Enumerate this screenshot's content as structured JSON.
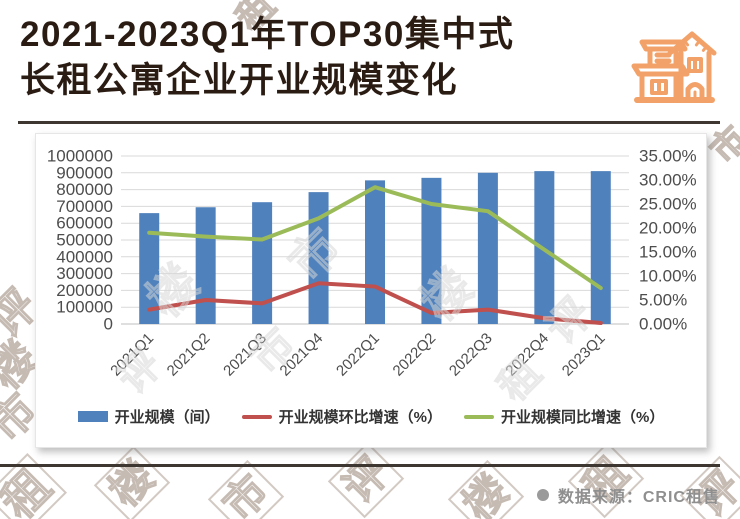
{
  "title": {
    "line1": "2021-2023Q1年TOP30集中式",
    "line2": "长租公寓企业开业规模变化"
  },
  "footer": {
    "bullet": "●",
    "source": "数据来源：CRIC租售"
  },
  "watermark": {
    "texts": [
      "评",
      "楼",
      "市",
      "租"
    ]
  },
  "colors": {
    "bar_blue": "#4F81BD",
    "line_red": "#C0504D",
    "line_green": "#9BBB59",
    "accent_orange": "#F2A269",
    "title_text": "#2A1C13",
    "rule": "#3E3731",
    "grid": "#D9D9D9",
    "axis_text": "#4D4D4D",
    "footer_text": "#8F8F8F"
  },
  "chart_data": {
    "type": "combo-bar-line",
    "categories": [
      "2021Q1",
      "2021Q2",
      "2021Q3",
      "2021Q4",
      "2022Q1",
      "2022Q2",
      "2022Q3",
      "2022Q4",
      "2023Q1"
    ],
    "series": [
      {
        "name": "开业规模（间）",
        "type": "bar",
        "axis": "left",
        "color": "#4F81BD",
        "values": [
          660000,
          695000,
          725000,
          785000,
          855000,
          870000,
          900000,
          910000,
          910000
        ]
      },
      {
        "name": "开业规模环比增速（%）",
        "type": "line",
        "axis": "right",
        "color": "#C0504D",
        "values": [
          3.0,
          5.0,
          4.3,
          8.5,
          7.8,
          2.3,
          3.0,
          1.2,
          0.2
        ]
      },
      {
        "name": "开业规模同比增速（%）",
        "type": "line",
        "axis": "right",
        "color": "#9BBB59",
        "values": [
          19.0,
          18.2,
          17.6,
          22.0,
          28.5,
          25.0,
          23.5,
          15.5,
          7.5
        ]
      }
    ],
    "left_axis": {
      "min": 0,
      "max": 1000000,
      "step": 100000,
      "labels": [
        "1000000",
        "900000",
        "800000",
        "700000",
        "600000",
        "500000",
        "400000",
        "300000",
        "200000",
        "100000",
        "0"
      ]
    },
    "right_axis": {
      "min": 0,
      "max": 35,
      "step": 5,
      "labels": [
        "35.00%",
        "30.00%",
        "25.00%",
        "20.00%",
        "15.00%",
        "10.00%",
        "5.00%",
        "0.00%"
      ]
    },
    "grid": true,
    "legend_position": "bottom",
    "x_label_rotation_deg": -45
  }
}
